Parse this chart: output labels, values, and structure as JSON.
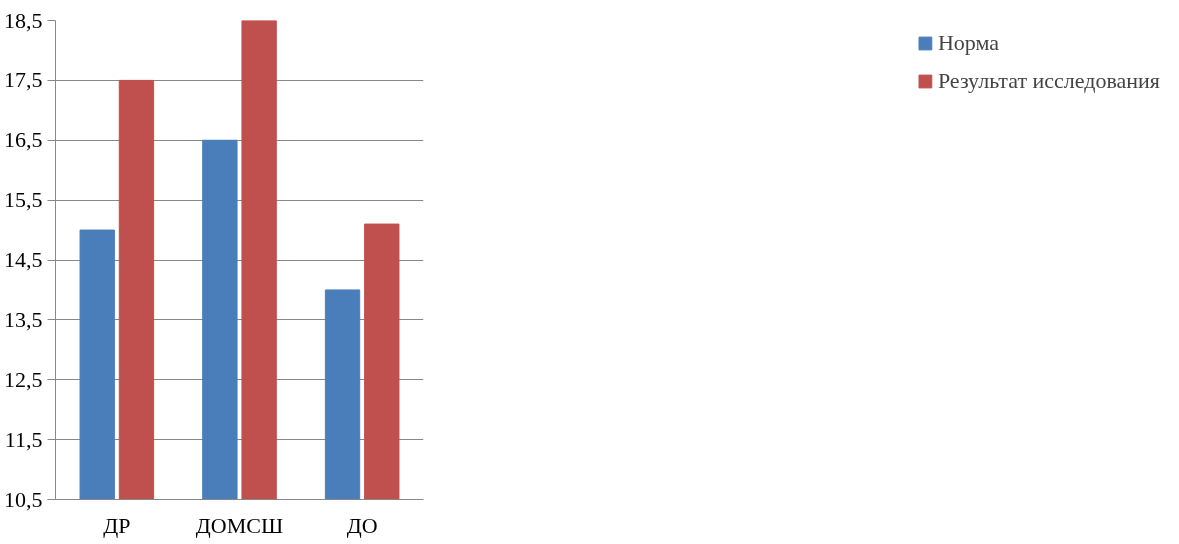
{
  "chart_data": {
    "type": "bar",
    "categories": [
      "ДР",
      "ДОМСШ",
      "ДО"
    ],
    "series": [
      {
        "name": "Норма",
        "color": "#4a7ebb",
        "values": [
          15.0,
          16.5,
          14.0
        ]
      },
      {
        "name": "Результат исследования",
        "color": "#c0504d",
        "values": [
          17.5,
          18.5,
          15.1
        ]
      }
    ],
    "ylim": [
      10.5,
      18.5
    ],
    "yticks": [
      {
        "value": 10.5,
        "label": "10,5"
      },
      {
        "value": 11.5,
        "label": "11,5"
      },
      {
        "value": 12.5,
        "label": "12,5"
      },
      {
        "value": 13.5,
        "label": "13,5"
      },
      {
        "value": 14.5,
        "label": "14,5"
      },
      {
        "value": 15.5,
        "label": "15,5"
      },
      {
        "value": 16.5,
        "label": "16,5"
      },
      {
        "value": 17.5,
        "label": "17,5"
      },
      {
        "value": 18.5,
        "label": "18,5"
      }
    ],
    "grid": "y",
    "legend": "right"
  }
}
